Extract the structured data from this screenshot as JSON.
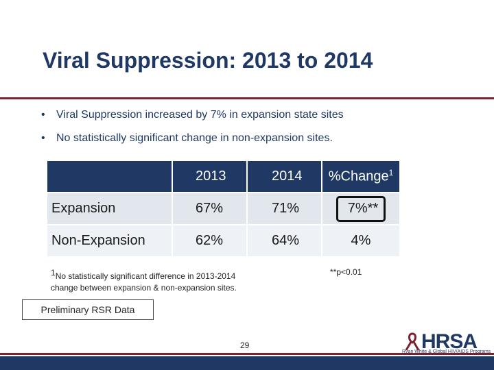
{
  "slide": {
    "title": "Viral Suppression: 2013 to 2014",
    "bullets": [
      "Viral Suppression increased by 7% in expansion state sites",
      "No statistically significant change in non-expansion sites."
    ]
  },
  "table": {
    "headers": [
      "",
      "2013",
      "2014",
      "%Change",
      "1"
    ],
    "rows": [
      {
        "label": "Expansion",
        "y2013": "67%",
        "y2014": "71%",
        "change": "7%**"
      },
      {
        "label": "Non-Expansion",
        "y2013": "62%",
        "y2014": "64%",
        "change": "4%"
      }
    ]
  },
  "footnotes": {
    "sup": "1",
    "note": "No statistically significant difference in 2013-2014 change between expansion & non-expansion sites.",
    "pvalue": "**p<0.01"
  },
  "label_box": "Preliminary RSR  Data",
  "page_number": "29",
  "logo": {
    "name": "HRSA",
    "subtitle": "Ryan White & Global HIV/AIDS Programs"
  },
  "colors": {
    "title": "#1f3864",
    "accent_rule": "#7b2230",
    "header_fill": "#1f3864"
  }
}
